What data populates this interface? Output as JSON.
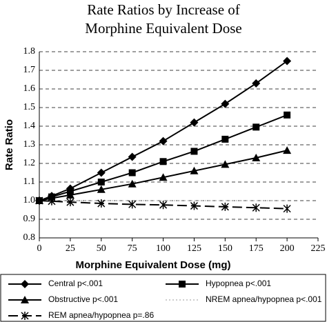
{
  "chart_data": {
    "type": "line",
    "title": "Rate Ratios by Increase of Morphine Equivalent Dose",
    "xlabel": "Morphine Equivalent Dose (mg)",
    "ylabel": "Rate Ratio",
    "x": [
      0,
      10,
      25,
      50,
      75,
      100,
      125,
      150,
      175,
      200
    ],
    "series": [
      {
        "name": "Central p<.001",
        "color": "#000000",
        "marker": "diamond",
        "dash": "solid",
        "values": [
          1.0,
          1.025,
          1.065,
          1.15,
          1.235,
          1.32,
          1.42,
          1.52,
          1.63,
          1.75
        ]
      },
      {
        "name": "Hypopnea p<.001",
        "color": "#000000",
        "marker": "square",
        "dash": "solid",
        "values": [
          1.0,
          1.02,
          1.05,
          1.1,
          1.15,
          1.21,
          1.265,
          1.33,
          1.395,
          1.46
        ]
      },
      {
        "name": "Obstructive p<.001",
        "color": "#000000",
        "marker": "triangle",
        "dash": "solid",
        "values": [
          1.0,
          1.013,
          1.03,
          1.06,
          1.09,
          1.125,
          1.16,
          1.195,
          1.23,
          1.27
        ]
      },
      {
        "name": "NREM apnea/hypopnea p<.001",
        "color": "#999999",
        "marker": "none",
        "dash": "dotted",
        "values": [
          1.0,
          1.0,
          1.0,
          1.0,
          1.0,
          1.0,
          1.0,
          1.0,
          1.0,
          1.0
        ]
      },
      {
        "name": "REM apnea/hypopnea p=.86",
        "color": "#000000",
        "marker": "star",
        "dash": "dashed",
        "values": [
          1.0,
          0.997,
          0.992,
          0.985,
          0.98,
          0.977,
          0.972,
          0.967,
          0.962,
          0.957
        ]
      }
    ],
    "xlim": [
      0,
      225
    ],
    "xticks": [
      0,
      25,
      50,
      75,
      100,
      125,
      150,
      175,
      200,
      225
    ],
    "ylim": [
      0.8,
      1.8
    ],
    "yticks": [
      0.8,
      0.9,
      {
        "value": 1,
        "label": "1.0"
      },
      1.1,
      1.2,
      1.3,
      1.4,
      1.5,
      1.6,
      1.7,
      1.8
    ],
    "grid": true
  }
}
